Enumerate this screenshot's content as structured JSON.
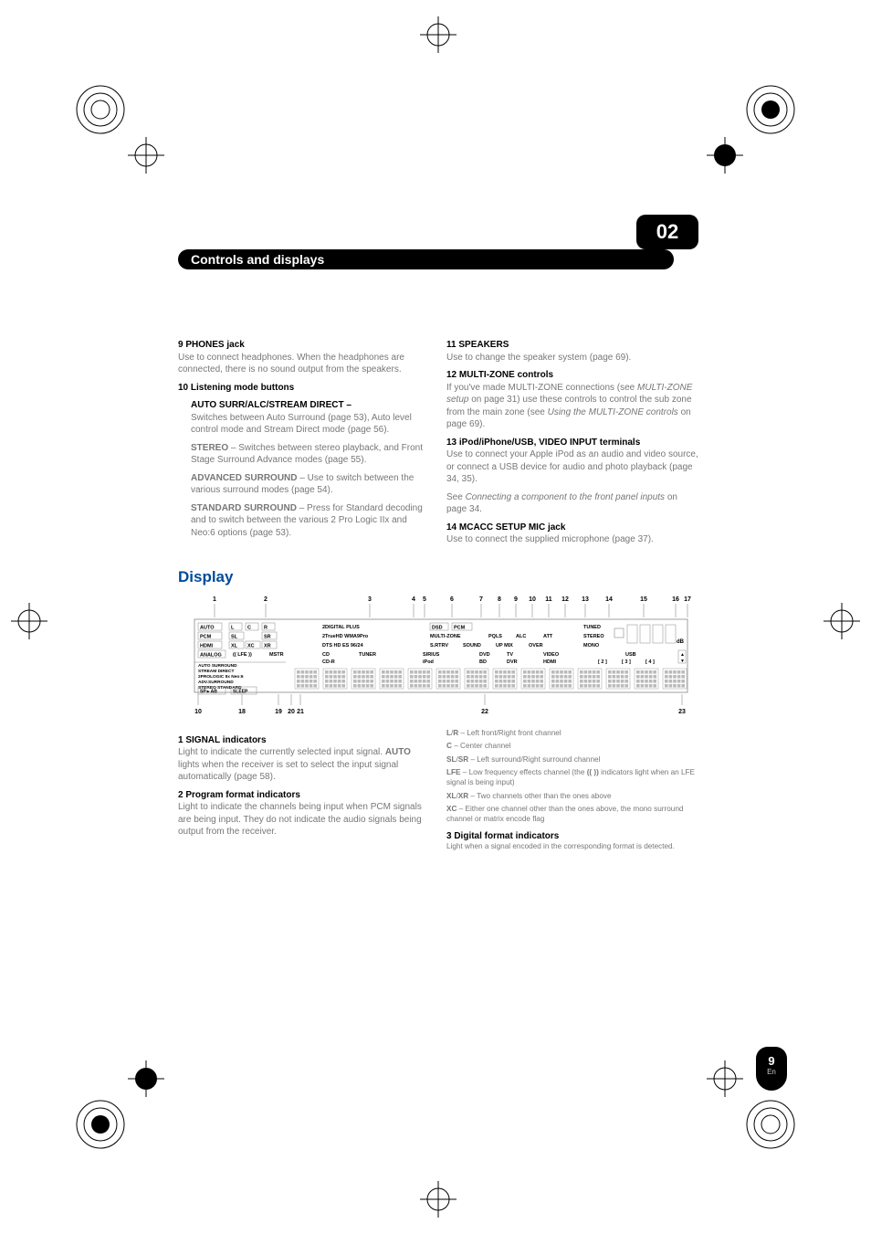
{
  "chapter": {
    "title": "Controls and displays",
    "number": "02"
  },
  "left": {
    "i9": {
      "head": "9   PHONES jack",
      "body": "Use to connect headphones. When the headphones are connected, there is no sound output from the speakers."
    },
    "i10": {
      "head": "10  Listening mode buttons",
      "subs": [
        {
          "head": "AUTO SURR/ALC/STREAM DIRECT –",
          "body": "Switches between Auto Surround (page 53), Auto level control mode and Stream Direct mode (page 56)."
        },
        {
          "head": "STEREO",
          "body": " – Switches between stereo playback, and Front Stage Surround Advance modes (page 55)."
        },
        {
          "head": "ADVANCED SURROUND",
          "body": " – Use to switch between the various surround modes (page 54)."
        },
        {
          "head": "STANDARD SURROUND",
          "body": " – Press for Standard decoding and to switch between the various 2 Pro Logic IIx and Neo:6 options (page 53)."
        }
      ]
    }
  },
  "right": {
    "i11": {
      "head": "11  SPEAKERS",
      "body": "Use to change the speaker system (page 69)."
    },
    "i12": {
      "head": "12  MULTI-ZONE controls",
      "body": "If you've made MULTI-ZONE connections (see <em>MULTI-ZONE setup</em> on page 31) use these controls to control the sub zone from the main zone (see <em>Using the MULTI-ZONE controls</em> on page 69)."
    },
    "i13": {
      "head": "13  iPod/iPhone/USB, VIDEO INPUT terminals",
      "body1": "Use to connect your Apple iPod as an audio and video source, or connect a USB device for audio and photo playback (page 34, 35).",
      "body2": "See <em>Connecting a component to the front panel inputs</em> on page 34."
    },
    "i14": {
      "head": "14  MCACC SETUP MIC jack",
      "body": "Use to connect the supplied microphone (page 37)."
    }
  },
  "section_display": "Display",
  "diagram": {
    "top_nums": [
      "1",
      "2",
      "3",
      "4",
      "5",
      "6",
      "7",
      "8",
      "9",
      "10",
      "11",
      "12",
      "13",
      "14",
      "15",
      "16",
      "17"
    ],
    "bottom_nums": [
      "10",
      "18",
      "19",
      "20",
      "21",
      "22",
      "23"
    ],
    "row1": [
      "AUTO",
      "L",
      "C",
      "R",
      "2DIGITAL PLUS",
      "DSD",
      "PCM",
      "",
      "",
      "",
      "",
      "TUNED"
    ],
    "row1b": [
      "PCM",
      "SL",
      "",
      "SR",
      "2TrueHD WMA9Pro",
      "MULTI-ZONE",
      "PQLS",
      "ALC",
      "ATT",
      "STEREO"
    ],
    "row1c": [
      "HDMI",
      "",
      "",
      "",
      "DTS HD ES 96/24",
      "S.RTRV",
      "SOUND",
      "UP MIX",
      "OVER",
      "MONO"
    ],
    "row2": [
      "DIGITAL",
      "XL",
      "XC",
      "XR"
    ],
    "row3": [
      "ANALOG",
      "(( LFE ))",
      "MSTR",
      "CD",
      "TUNER",
      "SIRIUS",
      "DVD",
      "TV",
      "VIDEO",
      "USB"
    ],
    "row3b": [
      "",
      "",
      "",
      "CD-R",
      "",
      "iPod",
      "BD",
      "DVR",
      "HDMI",
      "[ 2 ]",
      "[ 3 ]",
      "[ 4 ]"
    ],
    "row4": [
      "AUTO SURROUND",
      "STREAM DIRECT"
    ],
    "row5": [
      "2PROLOGIC IIx Neo:6"
    ],
    "row6": [
      "ADV.SURROUND"
    ],
    "row7": [
      "STEREO STANDARD"
    ],
    "row8": [
      "SP►AB",
      "SLEEP"
    ],
    "db": "dB",
    "colors": {
      "line": "#888888",
      "text": "#000000",
      "box": "#555555"
    }
  },
  "lower_left": {
    "i1": {
      "head": "1   SIGNAL indicators",
      "body": "Light to indicate the currently selected input signal. <b>AUTO</b> lights when the receiver is set to select the input signal automatically (page 58)."
    },
    "i2": {
      "head": "2   Program format indicators",
      "body": "Light to indicate the channels being input when PCM signals are being input. They do not indicate the audio signals being output from the receiver."
    }
  },
  "lower_right": {
    "lines": [
      "<b>L</b>/<b>R</b> – Left front/Right front channel",
      "<b>C</b> – Center channel",
      "<b>SL</b>/<b>SR</b> – Left surround/Right surround channel",
      "<b>LFE</b> – Low frequency effects channel (the <b>((  ))</b> indicators light when an LFE signal is being input)",
      "<b>XL</b>/<b>XR</b> – Two channels other than the ones above",
      "<b>XC</b> – Either one channel other than the ones above, the mono surround channel or matrix encode flag"
    ],
    "i3": {
      "head": "3   Digital format indicators",
      "body": "Light when a signal encoded in the corresponding format is detected."
    }
  },
  "page": {
    "num": "9",
    "lang": "En"
  }
}
